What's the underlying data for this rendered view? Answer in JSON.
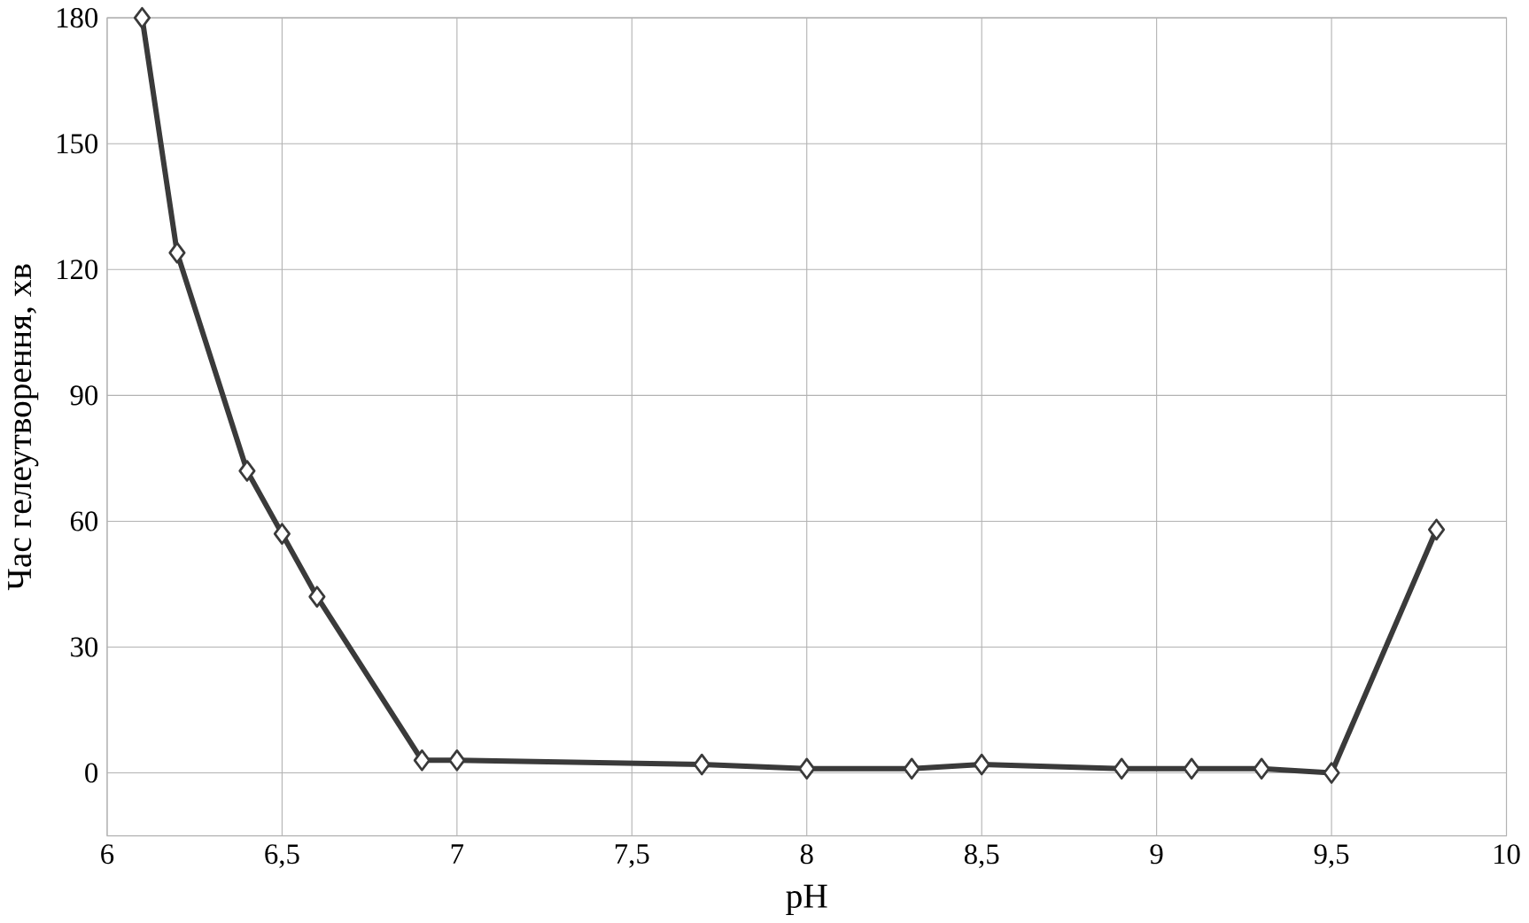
{
  "chart_data": {
    "type": "line",
    "xlabel": "pH",
    "ylabel": "Час гелеутворення, хв",
    "x": [
      6.1,
      6.2,
      6.4,
      6.5,
      6.6,
      6.9,
      7.0,
      7.7,
      8.0,
      8.3,
      8.5,
      8.9,
      9.1,
      9.3,
      9.5,
      9.8
    ],
    "values": [
      180,
      124,
      72,
      57,
      42,
      3,
      3,
      2,
      1,
      1,
      2,
      1,
      1,
      1,
      0,
      58
    ],
    "color": "#3a3a3a",
    "marker": "diamond",
    "line_style": "solid",
    "grid": true,
    "xlim": [
      6,
      10
    ],
    "ylim": [
      -15,
      180
    ],
    "xticks": [
      6,
      {
        "value": 6.5,
        "label": "6,5"
      },
      7,
      {
        "value": 7.5,
        "label": "7,5"
      },
      8,
      {
        "value": 8.5,
        "label": "8,5"
      },
      9,
      {
        "value": 9.5,
        "label": "9,5"
      },
      10
    ],
    "yticks": [
      0,
      30,
      60,
      90,
      120,
      150,
      180
    ]
  }
}
